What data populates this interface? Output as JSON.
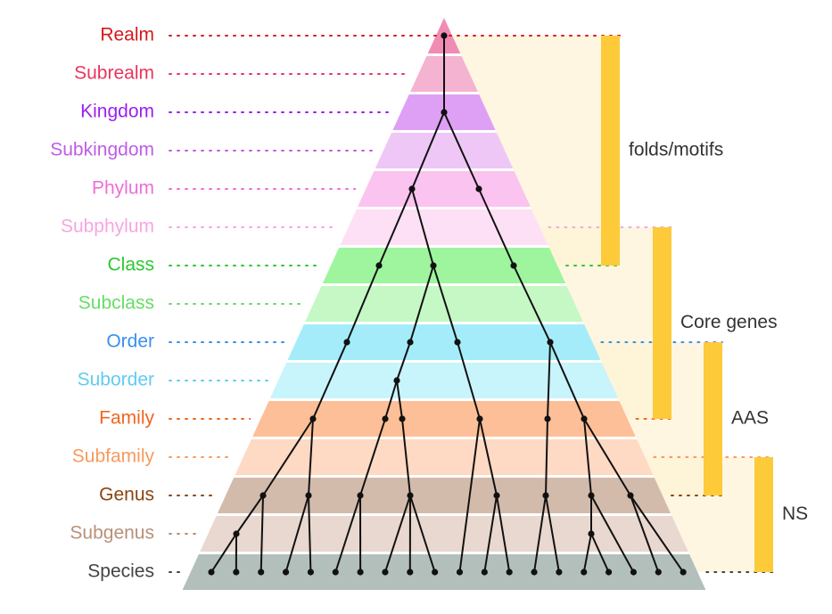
{
  "levels": [
    {
      "name": "Realm",
      "text_color": "#d7191c",
      "band_color": "#f08cb4"
    },
    {
      "name": "Subrealm",
      "text_color": "#e8365e",
      "band_color": "#f5b3d2"
    },
    {
      "name": "Kingdom",
      "text_color": "#9b1ff0",
      "band_color": "#dea0f5"
    },
    {
      "name": "Subkingdom",
      "text_color": "#c05ce6",
      "band_color": "#eec7f7"
    },
    {
      "name": "Phylum",
      "text_color": "#ee6fd5",
      "band_color": "#fbc3ef"
    },
    {
      "name": "Subphylum",
      "text_color": "#f7a6e0",
      "band_color": "#fde0f5"
    },
    {
      "name": "Class",
      "text_color": "#2dc82d",
      "band_color": "#9ef59e"
    },
    {
      "name": "Subclass",
      "text_color": "#66dd66",
      "band_color": "#c5f8c5"
    },
    {
      "name": "Order",
      "text_color": "#3a8ff0",
      "band_color": "#a5ecfb"
    },
    {
      "name": "Suborder",
      "text_color": "#5fcdf0",
      "band_color": "#c8f4fb"
    },
    {
      "name": "Family",
      "text_color": "#f26522",
      "band_color": "#fdbf97"
    },
    {
      "name": "Subfamily",
      "text_color": "#f79a5e",
      "band_color": "#fed9c4"
    },
    {
      "name": "Genus",
      "text_color": "#8b4513",
      "band_color": "#d3bbac"
    },
    {
      "name": "Subgenus",
      "text_color": "#b8917a",
      "band_color": "#e8d8cf"
    },
    {
      "name": "Species",
      "text_color": "#444444",
      "band_color": "#b3bfbb"
    }
  ],
  "brackets": [
    {
      "label": "folds/motifs",
      "from": "Realm",
      "to": "Class"
    },
    {
      "label": "Core genes",
      "from": "Subphylum",
      "to": "Family"
    },
    {
      "label": "AAS",
      "from": "Order",
      "to": "Genus"
    },
    {
      "label": "NS",
      "from": "Subfamily",
      "to": "Species"
    }
  ],
  "colors": {
    "bracket_bar": "#fdca3a",
    "bracket_shade": "#fdf3d6",
    "tree": "#111111"
  }
}
